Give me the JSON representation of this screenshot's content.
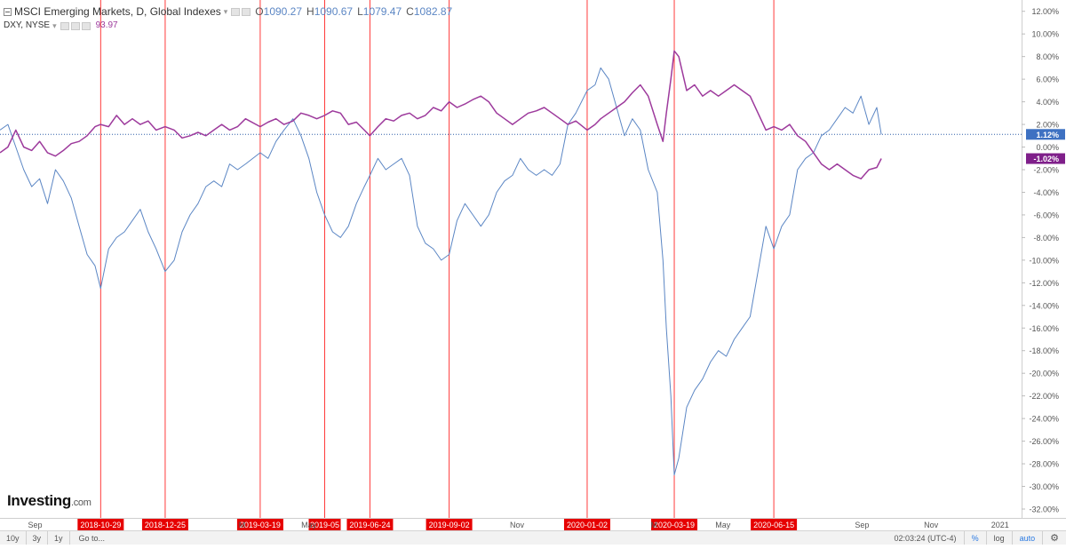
{
  "legend": {
    "main_title": "MSCI Emerging Markets, D, Global Indexes",
    "ohlc": [
      {
        "key": "O",
        "value": "1090.27"
      },
      {
        "key": "H",
        "value": "1090.67"
      },
      {
        "key": "L",
        "value": "1079.47"
      },
      {
        "key": "C",
        "value": "1082.87"
      }
    ],
    "secondary_title": "DXY, NYSE",
    "secondary_value": "93.97"
  },
  "brand": {
    "name": "Investing",
    "suffix": ".com"
  },
  "bottom_bar": {
    "ranges": [
      "10y",
      "3y",
      "1y"
    ],
    "goto": "Go to...",
    "time": "02:03:24 (UTC-4)",
    "toggles": [
      "%",
      "log",
      "auto"
    ]
  },
  "chart_data": {
    "type": "line",
    "y_axis_unit": "%",
    "ylim": [
      -32,
      13
    ],
    "y_ticks": [
      "12.00%",
      "10.00%",
      "8.00%",
      "6.00%",
      "4.00%",
      "2.00%",
      "0.00%",
      "-2.00%",
      "-4.00%",
      "-6.00%",
      "-8.00%",
      "-10.00%",
      "-12.00%",
      "-14.00%",
      "-16.00%",
      "-18.00%",
      "-20.00%",
      "-22.00%",
      "-24.00%",
      "-26.00%",
      "-28.00%",
      "-30.00%",
      "-32.00%"
    ],
    "x_range": [
      "2018-08-01",
      "2021-01-20"
    ],
    "x_tick_labels": [
      {
        "label": "Sep",
        "date": "2018-09-01"
      },
      {
        "label": "May",
        "date": "2019-05-01"
      },
      {
        "label": "Nov",
        "date": "2019-11-01"
      },
      {
        "label": "May",
        "date": "2020-05-01"
      },
      {
        "label": "Sep",
        "date": "2020-09-01"
      },
      {
        "label": "Nov",
        "date": "2020-11-01"
      },
      {
        "label": "2021",
        "date": "2021-01-01"
      }
    ],
    "x_tick_labels_partial": [
      {
        "label": "M",
        "date": "2019-03-03"
      },
      {
        "label": "M",
        "date": "2020-03-01"
      }
    ],
    "grid": false,
    "vertical_markers": [
      "2018-10-29",
      "2018-12-25",
      "2019-03-19",
      "2019-05",
      "2019-06-24",
      "2019-09-02",
      "2020-01-02",
      "2020-03-19",
      "2020-06-15"
    ],
    "marker_color": "#ff3b3b",
    "reference_line": {
      "value": 1.12,
      "color": "#2f5ea8"
    },
    "last_value_labels": [
      {
        "text": "1.12%",
        "value": 1.12,
        "color": "#3e71c2"
      },
      {
        "text": "-1.02%",
        "value": -1.02,
        "color": "#7f1f8a"
      }
    ],
    "series": [
      {
        "color": "#5b86c4",
        "points": [
          [
            "2018-08-01",
            1.5
          ],
          [
            "2018-08-08",
            2.0
          ],
          [
            "2018-08-15",
            0.0
          ],
          [
            "2018-08-22",
            -2.0
          ],
          [
            "2018-08-29",
            -3.5
          ],
          [
            "2018-09-05",
            -2.8
          ],
          [
            "2018-09-12",
            -5.0
          ],
          [
            "2018-09-19",
            -2.0
          ],
          [
            "2018-09-26",
            -3.0
          ],
          [
            "2018-10-03",
            -4.5
          ],
          [
            "2018-10-10",
            -7.0
          ],
          [
            "2018-10-17",
            -9.5
          ],
          [
            "2018-10-24",
            -10.5
          ],
          [
            "2018-10-29",
            -12.5
          ],
          [
            "2018-11-05",
            -9.0
          ],
          [
            "2018-11-12",
            -8.0
          ],
          [
            "2018-11-19",
            -7.5
          ],
          [
            "2018-11-26",
            -6.5
          ],
          [
            "2018-12-03",
            -5.5
          ],
          [
            "2018-12-10",
            -7.5
          ],
          [
            "2018-12-17",
            -9.0
          ],
          [
            "2018-12-25",
            -11.0
          ],
          [
            "2019-01-02",
            -10.0
          ],
          [
            "2019-01-09",
            -7.5
          ],
          [
            "2019-01-16",
            -6.0
          ],
          [
            "2019-01-23",
            -5.0
          ],
          [
            "2019-01-30",
            -3.5
          ],
          [
            "2019-02-06",
            -3.0
          ],
          [
            "2019-02-13",
            -3.5
          ],
          [
            "2019-02-20",
            -1.5
          ],
          [
            "2019-02-27",
            -2.0
          ],
          [
            "2019-03-06",
            -1.5
          ],
          [
            "2019-03-19",
            -0.5
          ],
          [
            "2019-03-26",
            -1.0
          ],
          [
            "2019-04-02",
            0.5
          ],
          [
            "2019-04-09",
            1.5
          ],
          [
            "2019-04-17",
            2.5
          ],
          [
            "2019-04-24",
            1.0
          ],
          [
            "2019-05-01",
            -1.0
          ],
          [
            "2019-05-08",
            -4.0
          ],
          [
            "2019-05-15",
            -6.0
          ],
          [
            "2019-05-22",
            -7.5
          ],
          [
            "2019-05-29",
            -8.0
          ],
          [
            "2019-06-05",
            -7.0
          ],
          [
            "2019-06-12",
            -5.0
          ],
          [
            "2019-06-19",
            -3.5
          ],
          [
            "2019-06-24",
            -2.5
          ],
          [
            "2019-07-01",
            -1.0
          ],
          [
            "2019-07-08",
            -2.0
          ],
          [
            "2019-07-15",
            -1.5
          ],
          [
            "2019-07-22",
            -1.0
          ],
          [
            "2019-07-29",
            -2.5
          ],
          [
            "2019-08-05",
            -7.0
          ],
          [
            "2019-08-12",
            -8.5
          ],
          [
            "2019-08-19",
            -9.0
          ],
          [
            "2019-08-26",
            -10.0
          ],
          [
            "2019-09-02",
            -9.5
          ],
          [
            "2019-09-09",
            -6.5
          ],
          [
            "2019-09-16",
            -5.0
          ],
          [
            "2019-09-23",
            -6.0
          ],
          [
            "2019-09-30",
            -7.0
          ],
          [
            "2019-10-07",
            -6.0
          ],
          [
            "2019-10-14",
            -4.0
          ],
          [
            "2019-10-21",
            -3.0
          ],
          [
            "2019-10-28",
            -2.5
          ],
          [
            "2019-11-04",
            -1.0
          ],
          [
            "2019-11-11",
            -2.0
          ],
          [
            "2019-11-18",
            -2.5
          ],
          [
            "2019-11-25",
            -2.0
          ],
          [
            "2019-12-02",
            -2.5
          ],
          [
            "2019-12-09",
            -1.5
          ],
          [
            "2019-12-16",
            2.0
          ],
          [
            "2019-12-23",
            3.0
          ],
          [
            "2020-01-02",
            5.0
          ],
          [
            "2020-01-09",
            5.5
          ],
          [
            "2020-01-14",
            7.0
          ],
          [
            "2020-01-21",
            6.0
          ],
          [
            "2020-01-28",
            3.5
          ],
          [
            "2020-02-04",
            1.0
          ],
          [
            "2020-02-11",
            2.5
          ],
          [
            "2020-02-18",
            1.5
          ],
          [
            "2020-02-25",
            -2.0
          ],
          [
            "2020-03-04",
            -4.0
          ],
          [
            "2020-03-09",
            -10.0
          ],
          [
            "2020-03-12",
            -16.0
          ],
          [
            "2020-03-16",
            -22.0
          ],
          [
            "2020-03-19",
            -29.0
          ],
          [
            "2020-03-23",
            -27.5
          ],
          [
            "2020-03-30",
            -23.0
          ],
          [
            "2020-04-06",
            -21.5
          ],
          [
            "2020-04-13",
            -20.5
          ],
          [
            "2020-04-20",
            -19.0
          ],
          [
            "2020-04-27",
            -18.0
          ],
          [
            "2020-05-04",
            -18.5
          ],
          [
            "2020-05-11",
            -17.0
          ],
          [
            "2020-05-18",
            -16.0
          ],
          [
            "2020-05-25",
            -15.0
          ],
          [
            "2020-06-01",
            -11.0
          ],
          [
            "2020-06-08",
            -7.0
          ],
          [
            "2020-06-15",
            -9.0
          ],
          [
            "2020-06-22",
            -7.0
          ],
          [
            "2020-06-29",
            -6.0
          ],
          [
            "2020-07-06",
            -2.0
          ],
          [
            "2020-07-13",
            -1.0
          ],
          [
            "2020-07-20",
            -0.5
          ],
          [
            "2020-07-27",
            1.0
          ],
          [
            "2020-08-03",
            1.5
          ],
          [
            "2020-08-10",
            2.5
          ],
          [
            "2020-08-17",
            3.5
          ],
          [
            "2020-08-24",
            3.0
          ],
          [
            "2020-08-31",
            4.5
          ],
          [
            "2020-09-07",
            2.0
          ],
          [
            "2020-09-14",
            3.5
          ],
          [
            "2020-09-18",
            1.12
          ]
        ]
      },
      {
        "color": "#9d3a9c",
        "points": [
          [
            "2018-08-01",
            -0.5
          ],
          [
            "2018-08-08",
            0.0
          ],
          [
            "2018-08-15",
            1.5
          ],
          [
            "2018-08-22",
            0.0
          ],
          [
            "2018-08-29",
            -0.3
          ],
          [
            "2018-09-05",
            0.5
          ],
          [
            "2018-09-12",
            -0.5
          ],
          [
            "2018-09-19",
            -0.8
          ],
          [
            "2018-09-26",
            -0.3
          ],
          [
            "2018-10-03",
            0.3
          ],
          [
            "2018-10-10",
            0.5
          ],
          [
            "2018-10-17",
            1.0
          ],
          [
            "2018-10-24",
            1.8
          ],
          [
            "2018-10-29",
            2.0
          ],
          [
            "2018-11-05",
            1.8
          ],
          [
            "2018-11-12",
            2.8
          ],
          [
            "2018-11-19",
            2.0
          ],
          [
            "2018-11-26",
            2.5
          ],
          [
            "2018-12-03",
            2.0
          ],
          [
            "2018-12-10",
            2.3
          ],
          [
            "2018-12-17",
            1.5
          ],
          [
            "2018-12-25",
            1.8
          ],
          [
            "2019-01-02",
            1.5
          ],
          [
            "2019-01-09",
            0.8
          ],
          [
            "2019-01-16",
            1.0
          ],
          [
            "2019-01-23",
            1.3
          ],
          [
            "2019-01-30",
            1.0
          ],
          [
            "2019-02-06",
            1.5
          ],
          [
            "2019-02-13",
            2.0
          ],
          [
            "2019-02-20",
            1.5
          ],
          [
            "2019-02-27",
            1.8
          ],
          [
            "2019-03-06",
            2.5
          ],
          [
            "2019-03-19",
            1.8
          ],
          [
            "2019-03-26",
            2.2
          ],
          [
            "2019-04-02",
            2.5
          ],
          [
            "2019-04-09",
            2.0
          ],
          [
            "2019-04-17",
            2.3
          ],
          [
            "2019-04-24",
            3.0
          ],
          [
            "2019-05-01",
            2.8
          ],
          [
            "2019-05-08",
            2.5
          ],
          [
            "2019-05-15",
            2.8
          ],
          [
            "2019-05-22",
            3.2
          ],
          [
            "2019-05-29",
            3.0
          ],
          [
            "2019-06-05",
            2.0
          ],
          [
            "2019-06-12",
            2.2
          ],
          [
            "2019-06-19",
            1.5
          ],
          [
            "2019-06-24",
            1.0
          ],
          [
            "2019-07-01",
            1.8
          ],
          [
            "2019-07-08",
            2.5
          ],
          [
            "2019-07-15",
            2.3
          ],
          [
            "2019-07-22",
            2.8
          ],
          [
            "2019-07-29",
            3.0
          ],
          [
            "2019-08-05",
            2.5
          ],
          [
            "2019-08-12",
            2.8
          ],
          [
            "2019-08-19",
            3.5
          ],
          [
            "2019-08-26",
            3.2
          ],
          [
            "2019-09-02",
            4.0
          ],
          [
            "2019-09-09",
            3.5
          ],
          [
            "2019-09-16",
            3.8
          ],
          [
            "2019-09-23",
            4.2
          ],
          [
            "2019-09-30",
            4.5
          ],
          [
            "2019-10-07",
            4.0
          ],
          [
            "2019-10-14",
            3.0
          ],
          [
            "2019-10-21",
            2.5
          ],
          [
            "2019-10-28",
            2.0
          ],
          [
            "2019-11-04",
            2.5
          ],
          [
            "2019-11-11",
            3.0
          ],
          [
            "2019-11-18",
            3.2
          ],
          [
            "2019-11-25",
            3.5
          ],
          [
            "2019-12-02",
            3.0
          ],
          [
            "2019-12-09",
            2.5
          ],
          [
            "2019-12-16",
            2.0
          ],
          [
            "2019-12-23",
            2.3
          ],
          [
            "2020-01-02",
            1.5
          ],
          [
            "2020-01-09",
            2.0
          ],
          [
            "2020-01-14",
            2.5
          ],
          [
            "2020-01-21",
            3.0
          ],
          [
            "2020-01-28",
            3.5
          ],
          [
            "2020-02-04",
            4.0
          ],
          [
            "2020-02-11",
            4.8
          ],
          [
            "2020-02-18",
            5.5
          ],
          [
            "2020-02-25",
            4.5
          ],
          [
            "2020-03-04",
            2.0
          ],
          [
            "2020-03-09",
            0.5
          ],
          [
            "2020-03-12",
            3.0
          ],
          [
            "2020-03-16",
            6.0
          ],
          [
            "2020-03-19",
            8.5
          ],
          [
            "2020-03-23",
            8.0
          ],
          [
            "2020-03-30",
            5.0
          ],
          [
            "2020-04-06",
            5.5
          ],
          [
            "2020-04-13",
            4.5
          ],
          [
            "2020-04-20",
            5.0
          ],
          [
            "2020-04-27",
            4.5
          ],
          [
            "2020-05-04",
            5.0
          ],
          [
            "2020-05-11",
            5.5
          ],
          [
            "2020-05-18",
            5.0
          ],
          [
            "2020-05-25",
            4.5
          ],
          [
            "2020-06-01",
            3.0
          ],
          [
            "2020-06-08",
            1.5
          ],
          [
            "2020-06-15",
            1.8
          ],
          [
            "2020-06-22",
            1.5
          ],
          [
            "2020-06-29",
            2.0
          ],
          [
            "2020-07-06",
            1.0
          ],
          [
            "2020-07-13",
            0.5
          ],
          [
            "2020-07-20",
            -0.5
          ],
          [
            "2020-07-27",
            -1.5
          ],
          [
            "2020-08-03",
            -2.0
          ],
          [
            "2020-08-10",
            -1.5
          ],
          [
            "2020-08-17",
            -2.0
          ],
          [
            "2020-08-24",
            -2.5
          ],
          [
            "2020-08-31",
            -2.8
          ],
          [
            "2020-09-07",
            -2.0
          ],
          [
            "2020-09-14",
            -1.8
          ],
          [
            "2020-09-18",
            -1.02
          ]
        ]
      }
    ]
  }
}
